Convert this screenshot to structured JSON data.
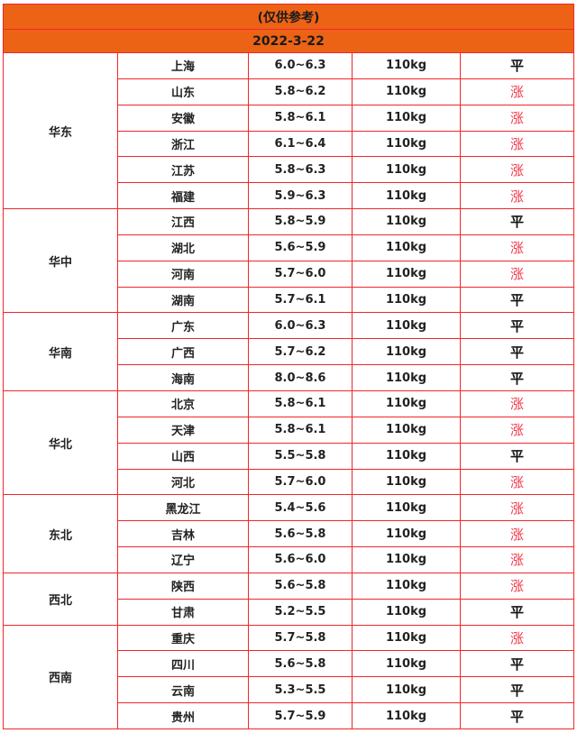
{
  "header": {
    "note": "(仅供参考)",
    "date": "2022-3-22"
  },
  "colors": {
    "header_bg": "#ec6316",
    "border": "#f2262a",
    "up": "#f03a4a",
    "flat": "#111111"
  },
  "regions": [
    {
      "name": "华东",
      "rows": [
        {
          "province": "上海",
          "price": "6.0~6.3",
          "weight": "110kg",
          "trend": "平"
        },
        {
          "province": "山东",
          "price": "5.8~6.2",
          "weight": "110kg",
          "trend": "涨"
        },
        {
          "province": "安徽",
          "price": "5.8~6.1",
          "weight": "110kg",
          "trend": "涨"
        },
        {
          "province": "浙江",
          "price": "6.1~6.4",
          "weight": "110kg",
          "trend": "涨"
        },
        {
          "province": "江苏",
          "price": "5.8~6.3",
          "weight": "110kg",
          "trend": "涨"
        },
        {
          "province": "福建",
          "price": "5.9~6.3",
          "weight": "110kg",
          "trend": "涨"
        }
      ]
    },
    {
      "name": "华中",
      "rows": [
        {
          "province": "江西",
          "price": "5.8~5.9",
          "weight": "110kg",
          "trend": "平"
        },
        {
          "province": "湖北",
          "price": "5.6~5.9",
          "weight": "110kg",
          "trend": "涨"
        },
        {
          "province": "河南",
          "price": "5.7~6.0",
          "weight": "110kg",
          "trend": "涨"
        },
        {
          "province": "湖南",
          "price": "5.7~6.1",
          "weight": "110kg",
          "trend": "平"
        }
      ]
    },
    {
      "name": "华南",
      "rows": [
        {
          "province": "广东",
          "price": "6.0~6.3",
          "weight": "110kg",
          "trend": "平"
        },
        {
          "province": "广西",
          "price": "5.7~6.2",
          "weight": "110kg",
          "trend": "平"
        },
        {
          "province": "海南",
          "price": "8.0~8.6",
          "weight": "110kg",
          "trend": "平"
        }
      ]
    },
    {
      "name": "华北",
      "rows": [
        {
          "province": "北京",
          "price": "5.8~6.1",
          "weight": "110kg",
          "trend": "涨"
        },
        {
          "province": "天津",
          "price": "5.8~6.1",
          "weight": "110kg",
          "trend": "涨"
        },
        {
          "province": "山西",
          "price": "5.5~5.8",
          "weight": "110kg",
          "trend": "平"
        },
        {
          "province": "河北",
          "price": "5.7~6.0",
          "weight": "110kg",
          "trend": "涨"
        }
      ]
    },
    {
      "name": "东北",
      "rows": [
        {
          "province": "黑龙江",
          "price": "5.4~5.6",
          "weight": "110kg",
          "trend": "涨"
        },
        {
          "province": "吉林",
          "price": "5.6~5.8",
          "weight": "110kg",
          "trend": "涨"
        },
        {
          "province": "辽宁",
          "price": "5.6~6.0",
          "weight": "110kg",
          "trend": "涨"
        }
      ]
    },
    {
      "name": "西北",
      "rows": [
        {
          "province": "陕西",
          "price": "5.6~5.8",
          "weight": "110kg",
          "trend": "涨"
        },
        {
          "province": "甘肃",
          "price": "5.2~5.5",
          "weight": "110kg",
          "trend": "平"
        }
      ]
    },
    {
      "name": "西南",
      "rows": [
        {
          "province": "重庆",
          "price": "5.7~5.8",
          "weight": "110kg",
          "trend": "涨"
        },
        {
          "province": "四川",
          "price": "5.6~5.8",
          "weight": "110kg",
          "trend": "平"
        },
        {
          "province": "云南",
          "price": "5.3~5.5",
          "weight": "110kg",
          "trend": "平"
        },
        {
          "province": "贵州",
          "price": "5.7~5.9",
          "weight": "110kg",
          "trend": "平"
        }
      ]
    }
  ]
}
